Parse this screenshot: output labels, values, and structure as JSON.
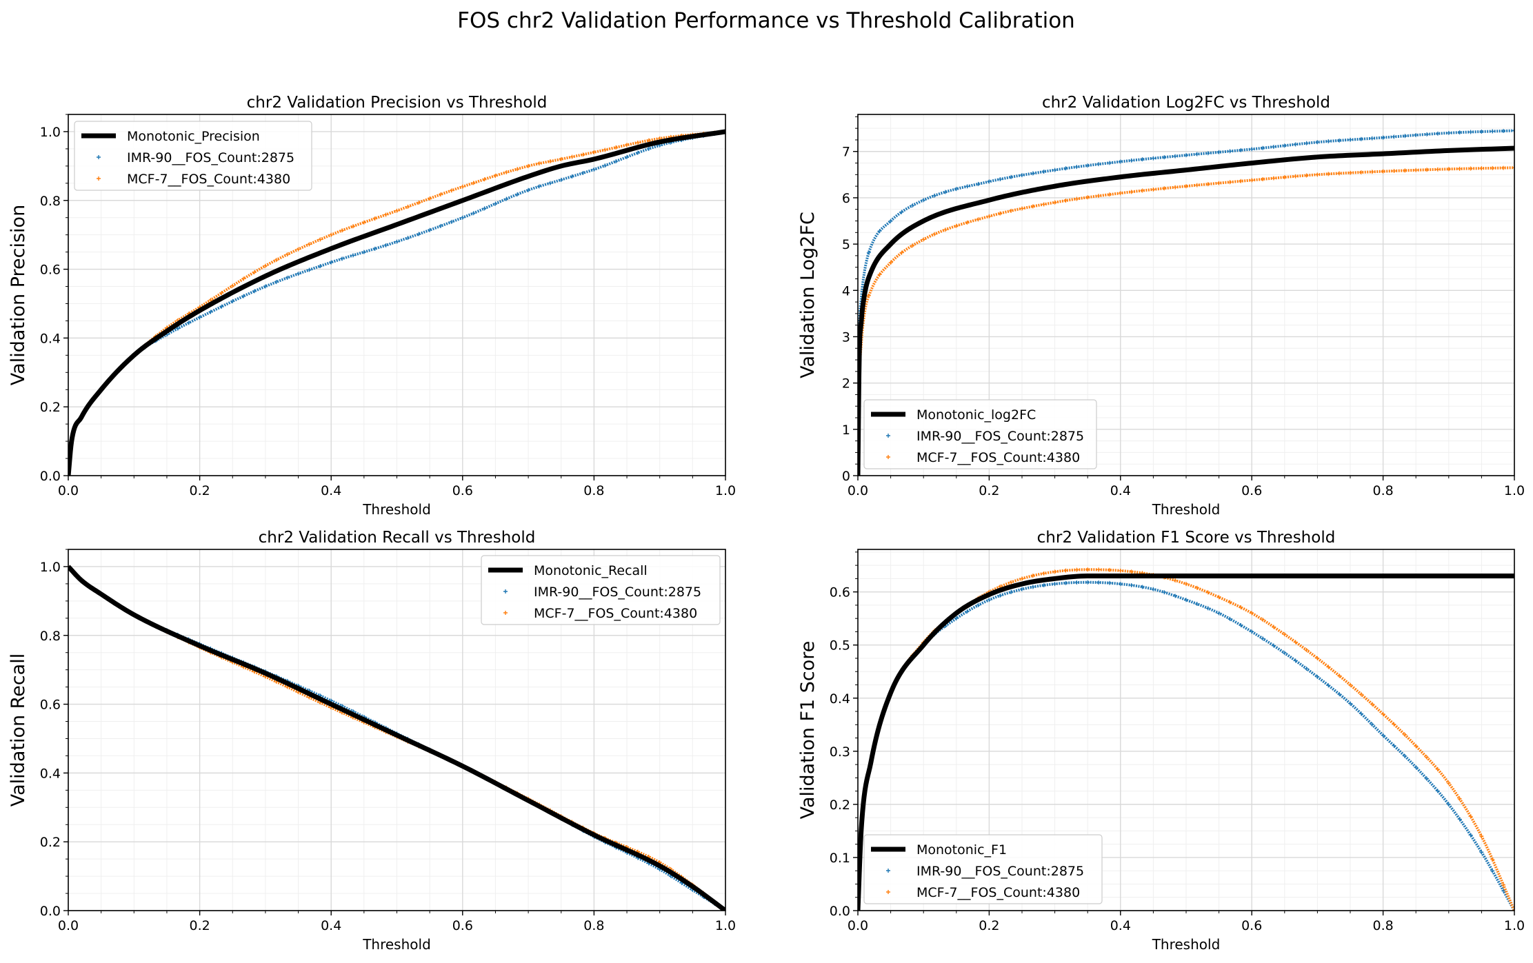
{
  "figure": {
    "suptitle": "FOS chr2 Validation Performance vs Threshold Calibration"
  },
  "colors": {
    "mono": "#000000",
    "imr": "#1f77b4",
    "mcf": "#ff7f0e",
    "grid": "#d9d9d9",
    "minorgrid": "#efefef"
  },
  "chart_data": [
    {
      "type": "line",
      "title": "chr2 Validation Precision vs Threshold",
      "xlabel": "Threshold",
      "ylabel": "Validation Precision",
      "xlim": [
        0,
        1
      ],
      "ylim": [
        0,
        1.05
      ],
      "xticks": [
        "0.0",
        "0.2",
        "0.4",
        "0.6",
        "0.8",
        "1.0"
      ],
      "yticks": [
        "0.0",
        "0.2",
        "0.4",
        "0.6",
        "0.8",
        "1.0"
      ],
      "grid": true,
      "legend": "upper left",
      "series": [
        {
          "name": "Monotonic_Precision",
          "style": "line",
          "x": [
            0,
            0.005,
            0.02,
            0.05,
            0.1,
            0.15,
            0.2,
            0.3,
            0.4,
            0.5,
            0.6,
            0.7,
            0.75,
            0.8,
            0.9,
            1.0
          ],
          "y": [
            0,
            0.1,
            0.17,
            0.25,
            0.35,
            0.42,
            0.48,
            0.58,
            0.66,
            0.73,
            0.8,
            0.87,
            0.9,
            0.92,
            0.97,
            1.0
          ]
        },
        {
          "name": "IMR-90__FOS_Count:2875",
          "style": "points",
          "x": [
            0,
            0.005,
            0.02,
            0.05,
            0.1,
            0.15,
            0.2,
            0.3,
            0.4,
            0.5,
            0.6,
            0.7,
            0.75,
            0.8,
            0.9,
            1.0
          ],
          "y": [
            0,
            0.1,
            0.17,
            0.25,
            0.35,
            0.41,
            0.46,
            0.55,
            0.62,
            0.68,
            0.75,
            0.83,
            0.86,
            0.89,
            0.96,
            1.0
          ]
        },
        {
          "name": "MCF-7__FOS_Count:4380",
          "style": "points",
          "x": [
            0,
            0.005,
            0.02,
            0.05,
            0.1,
            0.15,
            0.2,
            0.3,
            0.4,
            0.5,
            0.6,
            0.7,
            0.75,
            0.8,
            0.9,
            1.0
          ],
          "y": [
            0,
            0.1,
            0.17,
            0.25,
            0.35,
            0.43,
            0.49,
            0.61,
            0.7,
            0.77,
            0.84,
            0.9,
            0.92,
            0.94,
            0.98,
            1.0
          ]
        }
      ]
    },
    {
      "type": "line",
      "title": "chr2 Validation Log2FC vs Threshold",
      "xlabel": "Threshold",
      "ylabel": "Validation Log2FC",
      "xlim": [
        0,
        1
      ],
      "ylim": [
        0,
        7.8
      ],
      "xticks": [
        "0.0",
        "0.2",
        "0.4",
        "0.6",
        "0.8",
        "1.0"
      ],
      "yticks": [
        "0",
        "1",
        "2",
        "3",
        "4",
        "5",
        "6",
        "7"
      ],
      "grid": true,
      "legend": "lower left",
      "series": [
        {
          "name": "Monotonic_log2FC",
          "style": "line",
          "x": [
            0,
            0.002,
            0.005,
            0.01,
            0.02,
            0.05,
            0.1,
            0.2,
            0.3,
            0.4,
            0.5,
            0.6,
            0.7,
            0.8,
            0.9,
            1.0
          ],
          "y": [
            0,
            2.5,
            3.3,
            3.9,
            4.4,
            5.0,
            5.5,
            5.95,
            6.25,
            6.45,
            6.6,
            6.75,
            6.88,
            6.95,
            7.02,
            7.07
          ]
        },
        {
          "name": "IMR-90__FOS_Count:2875",
          "style": "points",
          "x": [
            0,
            0.002,
            0.005,
            0.01,
            0.02,
            0.05,
            0.1,
            0.2,
            0.3,
            0.4,
            0.5,
            0.6,
            0.7,
            0.8,
            0.9,
            1.0
          ],
          "y": [
            0,
            3.0,
            3.8,
            4.4,
            4.95,
            5.5,
            5.95,
            6.35,
            6.6,
            6.78,
            6.92,
            7.05,
            7.2,
            7.3,
            7.4,
            7.45
          ]
        },
        {
          "name": "MCF-7__FOS_Count:4380",
          "style": "points",
          "x": [
            0,
            0.002,
            0.005,
            0.01,
            0.02,
            0.05,
            0.1,
            0.2,
            0.3,
            0.4,
            0.5,
            0.6,
            0.7,
            0.8,
            0.9,
            1.0
          ],
          "y": [
            0,
            2.0,
            2.8,
            3.5,
            4.0,
            4.6,
            5.1,
            5.6,
            5.9,
            6.1,
            6.25,
            6.38,
            6.5,
            6.57,
            6.62,
            6.65
          ]
        }
      ]
    },
    {
      "type": "line",
      "title": "chr2 Validation Recall vs Threshold",
      "xlabel": "Threshold",
      "ylabel": "Validation Recall",
      "xlim": [
        0,
        1
      ],
      "ylim": [
        0,
        1.05
      ],
      "xticks": [
        "0.0",
        "0.2",
        "0.4",
        "0.6",
        "0.8",
        "1.0"
      ],
      "yticks": [
        "0.0",
        "0.2",
        "0.4",
        "0.6",
        "0.8",
        "1.0"
      ],
      "grid": true,
      "legend": "upper right",
      "series": [
        {
          "name": "Monotonic_Recall",
          "style": "line",
          "x": [
            0,
            0.02,
            0.05,
            0.1,
            0.2,
            0.3,
            0.4,
            0.5,
            0.6,
            0.7,
            0.8,
            0.9,
            0.95,
            1.0
          ],
          "y": [
            1.0,
            0.96,
            0.92,
            0.86,
            0.77,
            0.69,
            0.6,
            0.51,
            0.42,
            0.32,
            0.22,
            0.13,
            0.07,
            0.0
          ]
        },
        {
          "name": "IMR-90__FOS_Count:2875",
          "style": "points",
          "x": [
            0,
            0.02,
            0.05,
            0.1,
            0.2,
            0.3,
            0.4,
            0.5,
            0.6,
            0.7,
            0.8,
            0.9,
            0.95,
            1.0
          ],
          "y": [
            1.0,
            0.96,
            0.92,
            0.86,
            0.775,
            0.695,
            0.61,
            0.515,
            0.42,
            0.32,
            0.215,
            0.12,
            0.06,
            0.0
          ]
        },
        {
          "name": "MCF-7__FOS_Count:4380",
          "style": "points",
          "x": [
            0,
            0.02,
            0.05,
            0.1,
            0.2,
            0.3,
            0.4,
            0.5,
            0.6,
            0.7,
            0.8,
            0.9,
            0.95,
            1.0
          ],
          "y": [
            1.0,
            0.96,
            0.92,
            0.86,
            0.765,
            0.68,
            0.59,
            0.505,
            0.42,
            0.325,
            0.225,
            0.14,
            0.075,
            0.0
          ]
        }
      ]
    },
    {
      "type": "line",
      "title": "chr2 Validation F1 Score vs Threshold",
      "xlabel": "Threshold",
      "ylabel": "Validation F1 Score",
      "xlim": [
        0,
        1
      ],
      "ylim": [
        0,
        0.68
      ],
      "xticks": [
        "0.0",
        "0.2",
        "0.4",
        "0.6",
        "0.8",
        "1.0"
      ],
      "yticks": [
        "0.0",
        "0.1",
        "0.2",
        "0.3",
        "0.4",
        "0.5",
        "0.6"
      ],
      "grid": true,
      "legend": "lower left",
      "series": [
        {
          "name": "Monotonic_F1",
          "style": "line",
          "x": [
            0,
            0.005,
            0.02,
            0.05,
            0.1,
            0.15,
            0.2,
            0.25,
            0.3,
            0.35,
            0.4,
            0.45,
            0.5,
            0.6,
            0.7,
            0.8,
            0.9,
            1.0
          ],
          "y": [
            0,
            0.15,
            0.28,
            0.41,
            0.5,
            0.56,
            0.595,
            0.615,
            0.625,
            0.63,
            0.63,
            0.63,
            0.63,
            0.63,
            0.63,
            0.63,
            0.63,
            0.63
          ]
        },
        {
          "name": "IMR-90__FOS_Count:2875",
          "style": "points",
          "x": [
            0,
            0.005,
            0.02,
            0.05,
            0.1,
            0.15,
            0.2,
            0.25,
            0.3,
            0.35,
            0.4,
            0.45,
            0.5,
            0.55,
            0.6,
            0.65,
            0.7,
            0.75,
            0.8,
            0.85,
            0.9,
            0.95,
            1.0
          ],
          "y": [
            0,
            0.15,
            0.28,
            0.41,
            0.5,
            0.55,
            0.585,
            0.605,
            0.615,
            0.618,
            0.615,
            0.605,
            0.585,
            0.56,
            0.525,
            0.485,
            0.44,
            0.39,
            0.33,
            0.27,
            0.2,
            0.11,
            0.0
          ]
        },
        {
          "name": "MCF-7__FOS_Count:4380",
          "style": "points",
          "x": [
            0,
            0.005,
            0.02,
            0.05,
            0.1,
            0.15,
            0.2,
            0.25,
            0.3,
            0.35,
            0.4,
            0.45,
            0.5,
            0.55,
            0.6,
            0.65,
            0.7,
            0.75,
            0.8,
            0.85,
            0.9,
            0.95,
            1.0
          ],
          "y": [
            0,
            0.15,
            0.28,
            0.41,
            0.505,
            0.56,
            0.6,
            0.625,
            0.638,
            0.642,
            0.64,
            0.632,
            0.615,
            0.59,
            0.56,
            0.52,
            0.475,
            0.425,
            0.37,
            0.31,
            0.24,
            0.14,
            0.0
          ]
        }
      ]
    }
  ]
}
